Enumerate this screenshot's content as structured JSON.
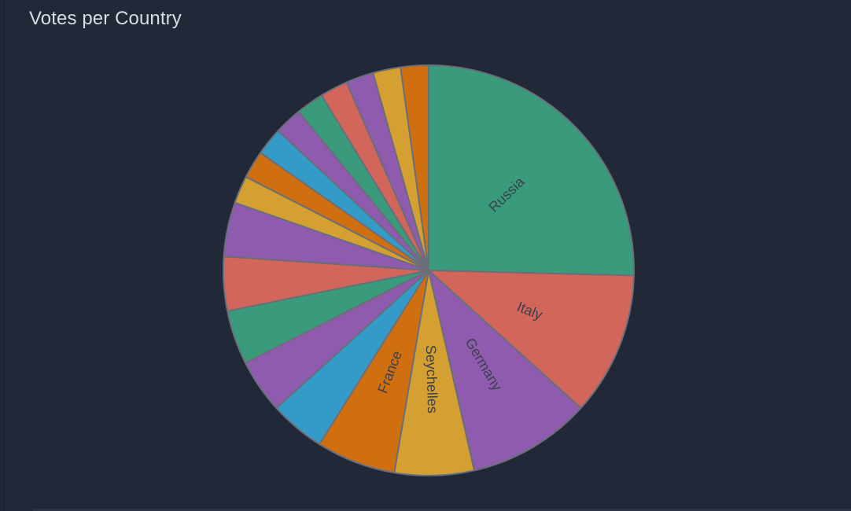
{
  "panel": {
    "title": "Votes per Country"
  },
  "chart_data": {
    "type": "pie",
    "title": "Votes per Country",
    "start": "top",
    "direction": "clockwise",
    "slices": [
      {
        "label": "Russia",
        "value": 25.6,
        "color": "#3a9b7c"
      },
      {
        "label": "Italy",
        "value": 11.4,
        "color": "#d3665a"
      },
      {
        "label": "Germany",
        "value": 9.8,
        "color": "#8e5bae"
      },
      {
        "label": "Seychelles",
        "value": 6.3,
        "color": "#d3a031"
      },
      {
        "label": "France",
        "value": 6.3,
        "color": "#d06f10"
      },
      {
        "label": "",
        "value": 4.4,
        "color": "#349bc8"
      },
      {
        "label": "",
        "value": 4.3,
        "color": "#8e5bae"
      },
      {
        "label": "",
        "value": 4.3,
        "color": "#3a9b7c"
      },
      {
        "label": "",
        "value": 4.3,
        "color": "#d3665a"
      },
      {
        "label": "",
        "value": 4.3,
        "color": "#8e5bae"
      },
      {
        "label": "",
        "value": 2.2,
        "color": "#d3a031"
      },
      {
        "label": "",
        "value": 2.2,
        "color": "#d06f10"
      },
      {
        "label": "",
        "value": 2.2,
        "color": "#349bc8"
      },
      {
        "label": "",
        "value": 2.2,
        "color": "#8e5bae"
      },
      {
        "label": "",
        "value": 2.2,
        "color": "#3a9b7c"
      },
      {
        "label": "",
        "value": 2.2,
        "color": "#d3665a"
      },
      {
        "label": "",
        "value": 2.2,
        "color": "#8e5bae"
      },
      {
        "label": "",
        "value": 2.2,
        "color": "#d3a031"
      },
      {
        "label": "",
        "value": 2.2,
        "color": "#d06f10"
      }
    ]
  }
}
